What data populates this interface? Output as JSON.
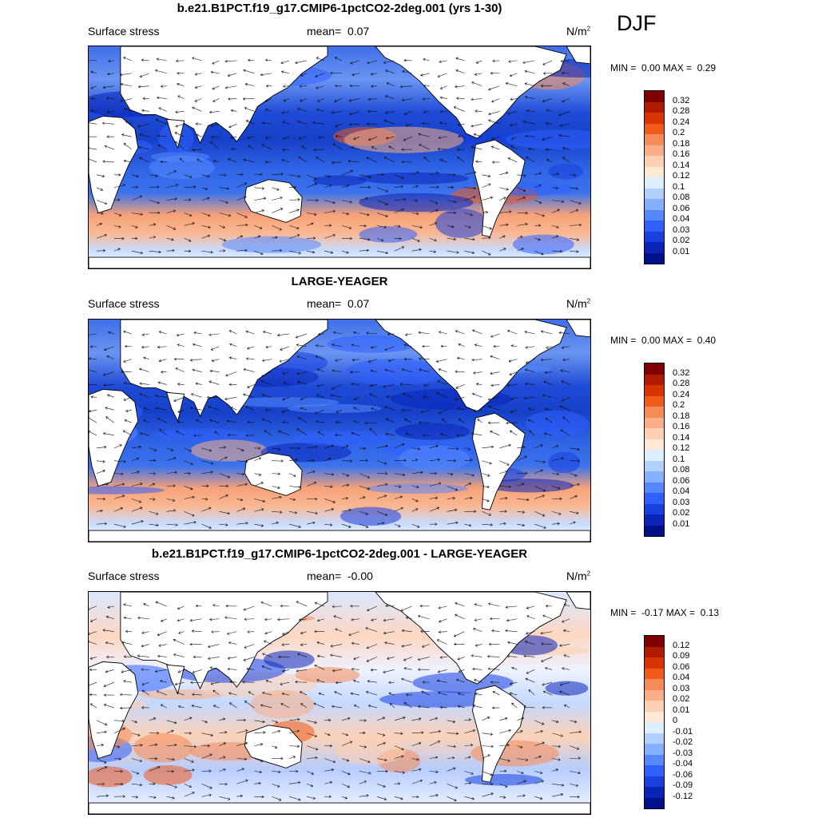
{
  "season": "DJF",
  "panels": [
    {
      "title": "b.e21.B1PCT.f19_g17.CMIP6-1pctCO2-2deg.001 (yrs 1-30)",
      "variable": "Surface stress",
      "mean_label": "mean=",
      "mean": "0.07",
      "unit": "N/m",
      "unit_sup": "2",
      "min_label": "MIN =",
      "min": "0.00",
      "max_label": "MAX =",
      "max": "0.29",
      "colorbar": {
        "levels": [
          "0.32",
          "0.28",
          "0.24",
          "0.2",
          "0.18",
          "0.16",
          "0.14",
          "0.12",
          "0.1",
          "0.08",
          "0.06",
          "0.04",
          "0.03",
          "0.02",
          "0.01"
        ],
        "colors": [
          "#7f0000",
          "#b01a00",
          "#d93300",
          "#f05a19",
          "#f58b55",
          "#f9ae85",
          "#fdd0b1",
          "#fee9d5",
          "#ddeeff",
          "#b0d0ff",
          "#85b0ff",
          "#5588ff",
          "#2f60ff",
          "#1840e0",
          "#0a24b8",
          "#00108a"
        ]
      }
    },
    {
      "title": "LARGE-YEAGER",
      "variable": "Surface stress",
      "mean_label": "mean=",
      "mean": "0.07",
      "unit": "N/m",
      "unit_sup": "2",
      "min_label": "MIN =",
      "min": "0.00",
      "max_label": "MAX =",
      "max": "0.40",
      "colorbar": {
        "levels": [
          "0.32",
          "0.28",
          "0.24",
          "0.2",
          "0.18",
          "0.16",
          "0.14",
          "0.12",
          "0.1",
          "0.08",
          "0.06",
          "0.04",
          "0.03",
          "0.02",
          "0.01"
        ],
        "colors": [
          "#7f0000",
          "#b01a00",
          "#d93300",
          "#f05a19",
          "#f58b55",
          "#f9ae85",
          "#fdd0b1",
          "#fee9d5",
          "#ddeeff",
          "#b0d0ff",
          "#85b0ff",
          "#5588ff",
          "#2f60ff",
          "#1840e0",
          "#0a24b8",
          "#00108a"
        ]
      }
    },
    {
      "title": "b.e21.B1PCT.f19_g17.CMIP6-1pctCO2-2deg.001 - LARGE-YEAGER",
      "variable": "Surface stress",
      "mean_label": "mean=",
      "mean": "-0.00",
      "unit": "N/m",
      "unit_sup": "2",
      "min_label": "MIN =",
      "min": "-0.17",
      "max_label": "MAX =",
      "max": "0.13",
      "colorbar": {
        "levels": [
          "0.12",
          "0.09",
          "0.06",
          "0.04",
          "0.03",
          "0.02",
          "0.01",
          "0",
          "-0.01",
          "-0.02",
          "-0.03",
          "-0.04",
          "-0.06",
          "-0.09",
          "-0.12"
        ],
        "colors": [
          "#7f0000",
          "#b01a00",
          "#d93300",
          "#f05a19",
          "#f58b55",
          "#f9ae85",
          "#fdd0b1",
          "#fee9d5",
          "#ddeeff",
          "#b0d0ff",
          "#85b0ff",
          "#5588ff",
          "#2f60ff",
          "#1840e0",
          "#0a24b8",
          "#00108a"
        ]
      }
    }
  ]
}
